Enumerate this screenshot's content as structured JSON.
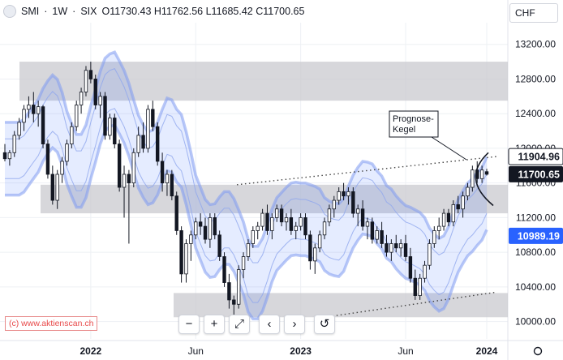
{
  "legend": {
    "symbol": "SMI",
    "interval": "1W",
    "exchange": "SIX",
    "separator": "·",
    "ohlc": "O11730.43 H11762.56 L11685.42 C11700.65"
  },
  "currency_label": "CHF",
  "watermark": "(c) www.aktienscan.ch",
  "nav_buttons": [
    "−",
    "+",
    "⤢",
    "‹",
    "›",
    "↺"
  ],
  "chart_data": {
    "type": "candlestick",
    "title": "",
    "x_ticks": [
      "2022",
      "Jun",
      "2023",
      "Jun",
      "2024"
    ],
    "y_ticks": [
      10000,
      10400,
      10800,
      11200,
      11600,
      12000,
      12400,
      12800,
      13200
    ],
    "ylim": [
      9800,
      13450
    ],
    "grid": true,
    "price_labels": [
      {
        "value": 11904.96,
        "text": "11904.96",
        "color": "#ffffff",
        "bg": "#ffffff",
        "style": "outline"
      },
      {
        "value": 11700.65,
        "text": "11700.65",
        "color": "#ffffff",
        "bg": "#131722",
        "style": "filled"
      },
      {
        "value": 10989.19,
        "text": "10989.19",
        "color": "#ffffff",
        "bg": "#2962ff",
        "style": "filled"
      }
    ],
    "annotation": {
      "text": "Prognose-\nKegel"
    },
    "zones": [
      {
        "from": 12550,
        "to": 13000
      },
      {
        "from": 11250,
        "to": 11580
      },
      {
        "from": 10050,
        "to": 10330
      }
    ],
    "candles": [
      [
        11950,
        12050,
        11850,
        11880
      ],
      [
        11880,
        11980,
        11800,
        11950
      ],
      [
        11950,
        12200,
        11900,
        12150
      ],
      [
        12150,
        12350,
        12100,
        12300
      ],
      [
        12300,
        12500,
        12200,
        12450
      ],
      [
        12450,
        12600,
        12350,
        12500
      ],
      [
        12500,
        12650,
        12300,
        12400
      ],
      [
        12400,
        12550,
        12250,
        12480
      ],
      [
        12480,
        12500,
        12000,
        12050
      ],
      [
        12050,
        12100,
        11650,
        11700
      ],
      [
        11700,
        11800,
        11350,
        11400
      ],
      [
        11400,
        11750,
        11300,
        11700
      ],
      [
        11700,
        11900,
        11600,
        11850
      ],
      [
        11850,
        12100,
        11800,
        12050
      ],
      [
        12050,
        12300,
        12000,
        12250
      ],
      [
        12250,
        12550,
        12200,
        12500
      ],
      [
        12500,
        12700,
        12400,
        12650
      ],
      [
        12650,
        12950,
        12600,
        12900
      ],
      [
        12900,
        13000,
        12750,
        12800
      ],
      [
        12800,
        12850,
        12450,
        12500
      ],
      [
        12500,
        12650,
        12350,
        12600
      ],
      [
        12600,
        12650,
        12100,
        12150
      ],
      [
        12150,
        12400,
        12100,
        12350
      ],
      [
        12350,
        12400,
        12000,
        12050
      ],
      [
        12050,
        12100,
        11500,
        11550
      ],
      [
        11550,
        11800,
        11200,
        11700
      ],
      [
        11700,
        11750,
        10900,
        11600
      ],
      [
        11600,
        12000,
        11550,
        11950
      ],
      [
        11950,
        12250,
        11900,
        12150
      ],
      [
        12150,
        12300,
        11950,
        12000
      ],
      [
        12000,
        12500,
        11950,
        12450
      ],
      [
        12450,
        12550,
        12200,
        12250
      ],
      [
        12250,
        12300,
        11800,
        11850
      ],
      [
        11850,
        11950,
        11500,
        11600
      ],
      [
        11600,
        11750,
        11450,
        11700
      ],
      [
        11700,
        11750,
        11400,
        11450
      ],
      [
        11450,
        11500,
        11000,
        11050
      ],
      [
        11050,
        11100,
        10450,
        10550
      ],
      [
        10550,
        10950,
        10450,
        10900
      ],
      [
        10900,
        11050,
        10700,
        11000
      ],
      [
        11000,
        11200,
        10950,
        11150
      ],
      [
        11150,
        11250,
        11000,
        11100
      ],
      [
        11100,
        11200,
        10900,
        10950
      ],
      [
        10950,
        11250,
        10850,
        11200
      ],
      [
        11200,
        11250,
        10950,
        11000
      ],
      [
        11000,
        11050,
        10700,
        10750
      ],
      [
        10750,
        10800,
        10400,
        10450
      ],
      [
        10450,
        10550,
        10150,
        10250
      ],
      [
        10250,
        10300,
        10050,
        10200
      ],
      [
        10200,
        10650,
        10150,
        10600
      ],
      [
        10600,
        10800,
        10500,
        10750
      ],
      [
        10750,
        10950,
        10700,
        10900
      ],
      [
        10900,
        11100,
        10850,
        11050
      ],
      [
        11050,
        11150,
        10950,
        11100
      ],
      [
        11100,
        11300,
        11050,
        11250
      ],
      [
        11250,
        11350,
        11000,
        11050
      ],
      [
        11050,
        11250,
        10950,
        11200
      ],
      [
        11200,
        11350,
        11150,
        11300
      ],
      [
        11300,
        11350,
        11100,
        11150
      ],
      [
        11150,
        11250,
        11050,
        11200
      ],
      [
        11200,
        11300,
        11000,
        11050
      ],
      [
        11050,
        11150,
        10950,
        11100
      ],
      [
        11100,
        11250,
        11050,
        11200
      ],
      [
        11200,
        11250,
        10950,
        11000
      ],
      [
        11000,
        11050,
        10600,
        10700
      ],
      [
        10700,
        10900,
        10550,
        10850
      ],
      [
        10850,
        11050,
        10800,
        11000
      ],
      [
        11000,
        11200,
        10950,
        11150
      ],
      [
        11150,
        11350,
        11100,
        11300
      ],
      [
        11300,
        11450,
        11200,
        11400
      ],
      [
        11400,
        11550,
        11350,
        11500
      ],
      [
        11500,
        11600,
        11400,
        11450
      ],
      [
        11450,
        11550,
        11350,
        11500
      ],
      [
        11500,
        11550,
        11200,
        11250
      ],
      [
        11250,
        11350,
        11100,
        11300
      ],
      [
        11300,
        11400,
        11050,
        11100
      ],
      [
        11100,
        11200,
        10950,
        11150
      ],
      [
        11150,
        11200,
        10900,
        10950
      ],
      [
        10950,
        11100,
        10900,
        11050
      ],
      [
        11050,
        11150,
        10850,
        10900
      ],
      [
        10900,
        11000,
        10750,
        10800
      ],
      [
        10800,
        10950,
        10700,
        10900
      ],
      [
        10900,
        11000,
        10800,
        10850
      ],
      [
        10850,
        10950,
        10750,
        10900
      ],
      [
        10900,
        11000,
        10700,
        10750
      ],
      [
        10750,
        10850,
        10450,
        10500
      ],
      [
        10500,
        10600,
        10250,
        10300
      ],
      [
        10300,
        10550,
        10250,
        10500
      ],
      [
        10500,
        10700,
        10450,
        10650
      ],
      [
        10650,
        10950,
        10600,
        10900
      ],
      [
        10900,
        11100,
        10850,
        11050
      ],
      [
        11050,
        11200,
        10950,
        11100
      ],
      [
        11100,
        11300,
        11050,
        11250
      ],
      [
        11250,
        11300,
        11100,
        11150
      ],
      [
        11150,
        11400,
        11100,
        11350
      ],
      [
        11350,
        11450,
        11250,
        11300
      ],
      [
        11300,
        11500,
        11200,
        11450
      ],
      [
        11450,
        11600,
        11400,
        11550
      ],
      [
        11550,
        11800,
        11500,
        11750
      ],
      [
        11750,
        11850,
        11600,
        11650
      ],
      [
        11650,
        11800,
        11600,
        11750
      ],
      [
        11730.43,
        11762.56,
        11685.42,
        11700.65
      ]
    ]
  }
}
